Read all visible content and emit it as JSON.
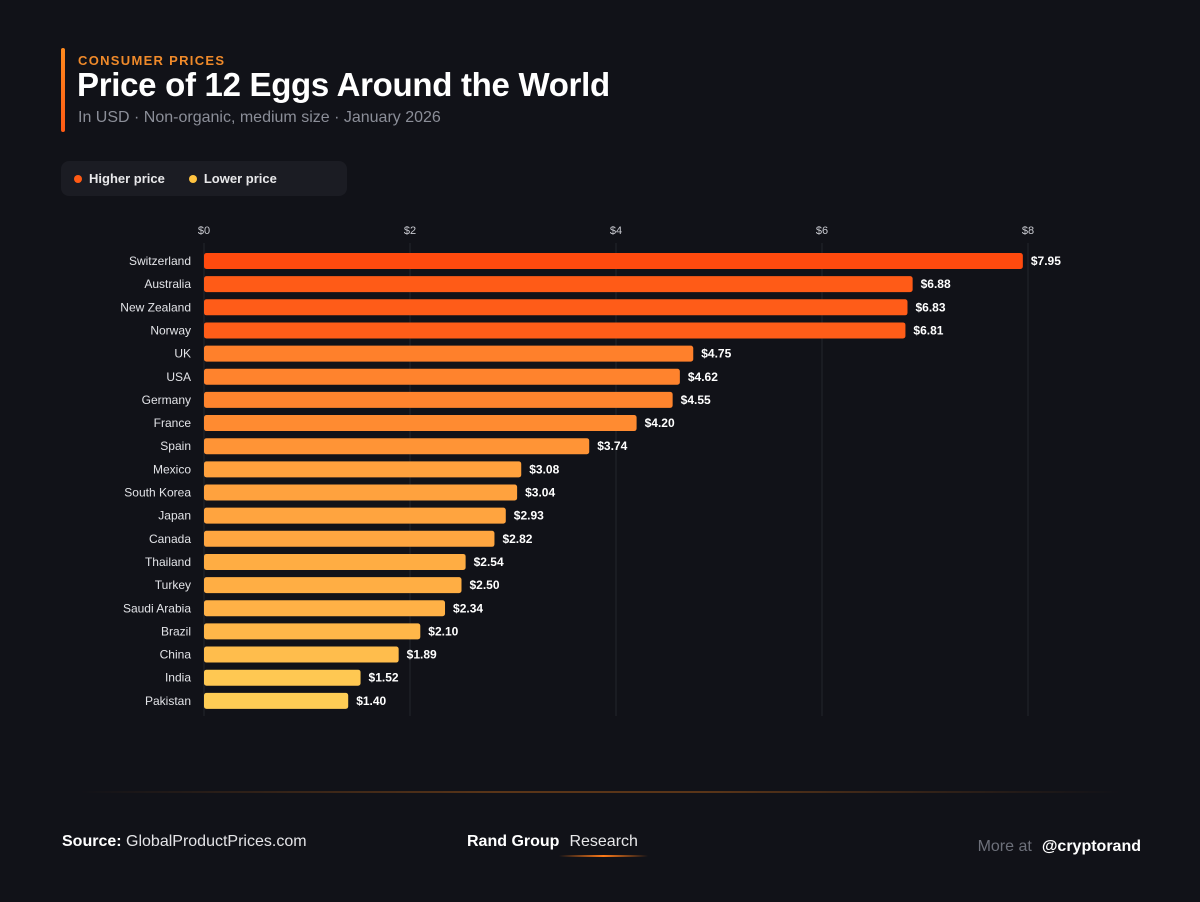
{
  "header": {
    "eyebrow": "CONSUMER PRICES",
    "title": "Price of 12 Eggs Around the World",
    "subtitle": "In USD · Non-organic, medium size · January 2026"
  },
  "legend": {
    "items": [
      {
        "label": "Higher price",
        "color": "#ff5a14"
      },
      {
        "label": "Lower price",
        "color": "#ffc340"
      }
    ]
  },
  "colors": {
    "accent": "#ff7a18",
    "high": "#ff4a0e",
    "low": "#ffcd55",
    "grid": "#23252d",
    "axis_text": "#c9cad0"
  },
  "chart_data": {
    "type": "bar",
    "orientation": "horizontal",
    "title": "Price of 12 Eggs Around the World",
    "xlabel": "",
    "ylabel": "",
    "xlim": [
      0,
      8
    ],
    "xticks": [
      0,
      2,
      4,
      6,
      8
    ],
    "xtick_labels": [
      "$0",
      "$2",
      "$4",
      "$6",
      "$8"
    ],
    "grid": true,
    "categories": [
      "Switzerland",
      "Australia",
      "New Zealand",
      "Norway",
      "UK",
      "USA",
      "Germany",
      "France",
      "Spain",
      "Mexico",
      "South Korea",
      "Japan",
      "Canada",
      "Thailand",
      "Turkey",
      "Saudi Arabia",
      "Brazil",
      "China",
      "India",
      "Pakistan"
    ],
    "values": [
      7.95,
      6.88,
      6.83,
      6.81,
      4.75,
      4.62,
      4.55,
      4.2,
      3.74,
      3.08,
      3.04,
      2.93,
      2.82,
      2.54,
      2.5,
      2.34,
      2.1,
      1.89,
      1.52,
      1.4
    ],
    "value_labels": [
      "$7.95",
      "$6.88",
      "$6.83",
      "$6.81",
      "$4.75",
      "$4.62",
      "$4.55",
      "$4.20",
      "$3.74",
      "$3.08",
      "$3.04",
      "$2.93",
      "$2.82",
      "$2.54",
      "$2.50",
      "$2.34",
      "$2.10",
      "$1.89",
      "$1.52",
      "$1.40"
    ]
  },
  "footer": {
    "source_label": "Source:",
    "source_value": "GlobalProductPrices.com",
    "brand_org": "Rand Group",
    "brand_unit": "Research",
    "more_label": "More at",
    "handle": "@cryptorand"
  }
}
